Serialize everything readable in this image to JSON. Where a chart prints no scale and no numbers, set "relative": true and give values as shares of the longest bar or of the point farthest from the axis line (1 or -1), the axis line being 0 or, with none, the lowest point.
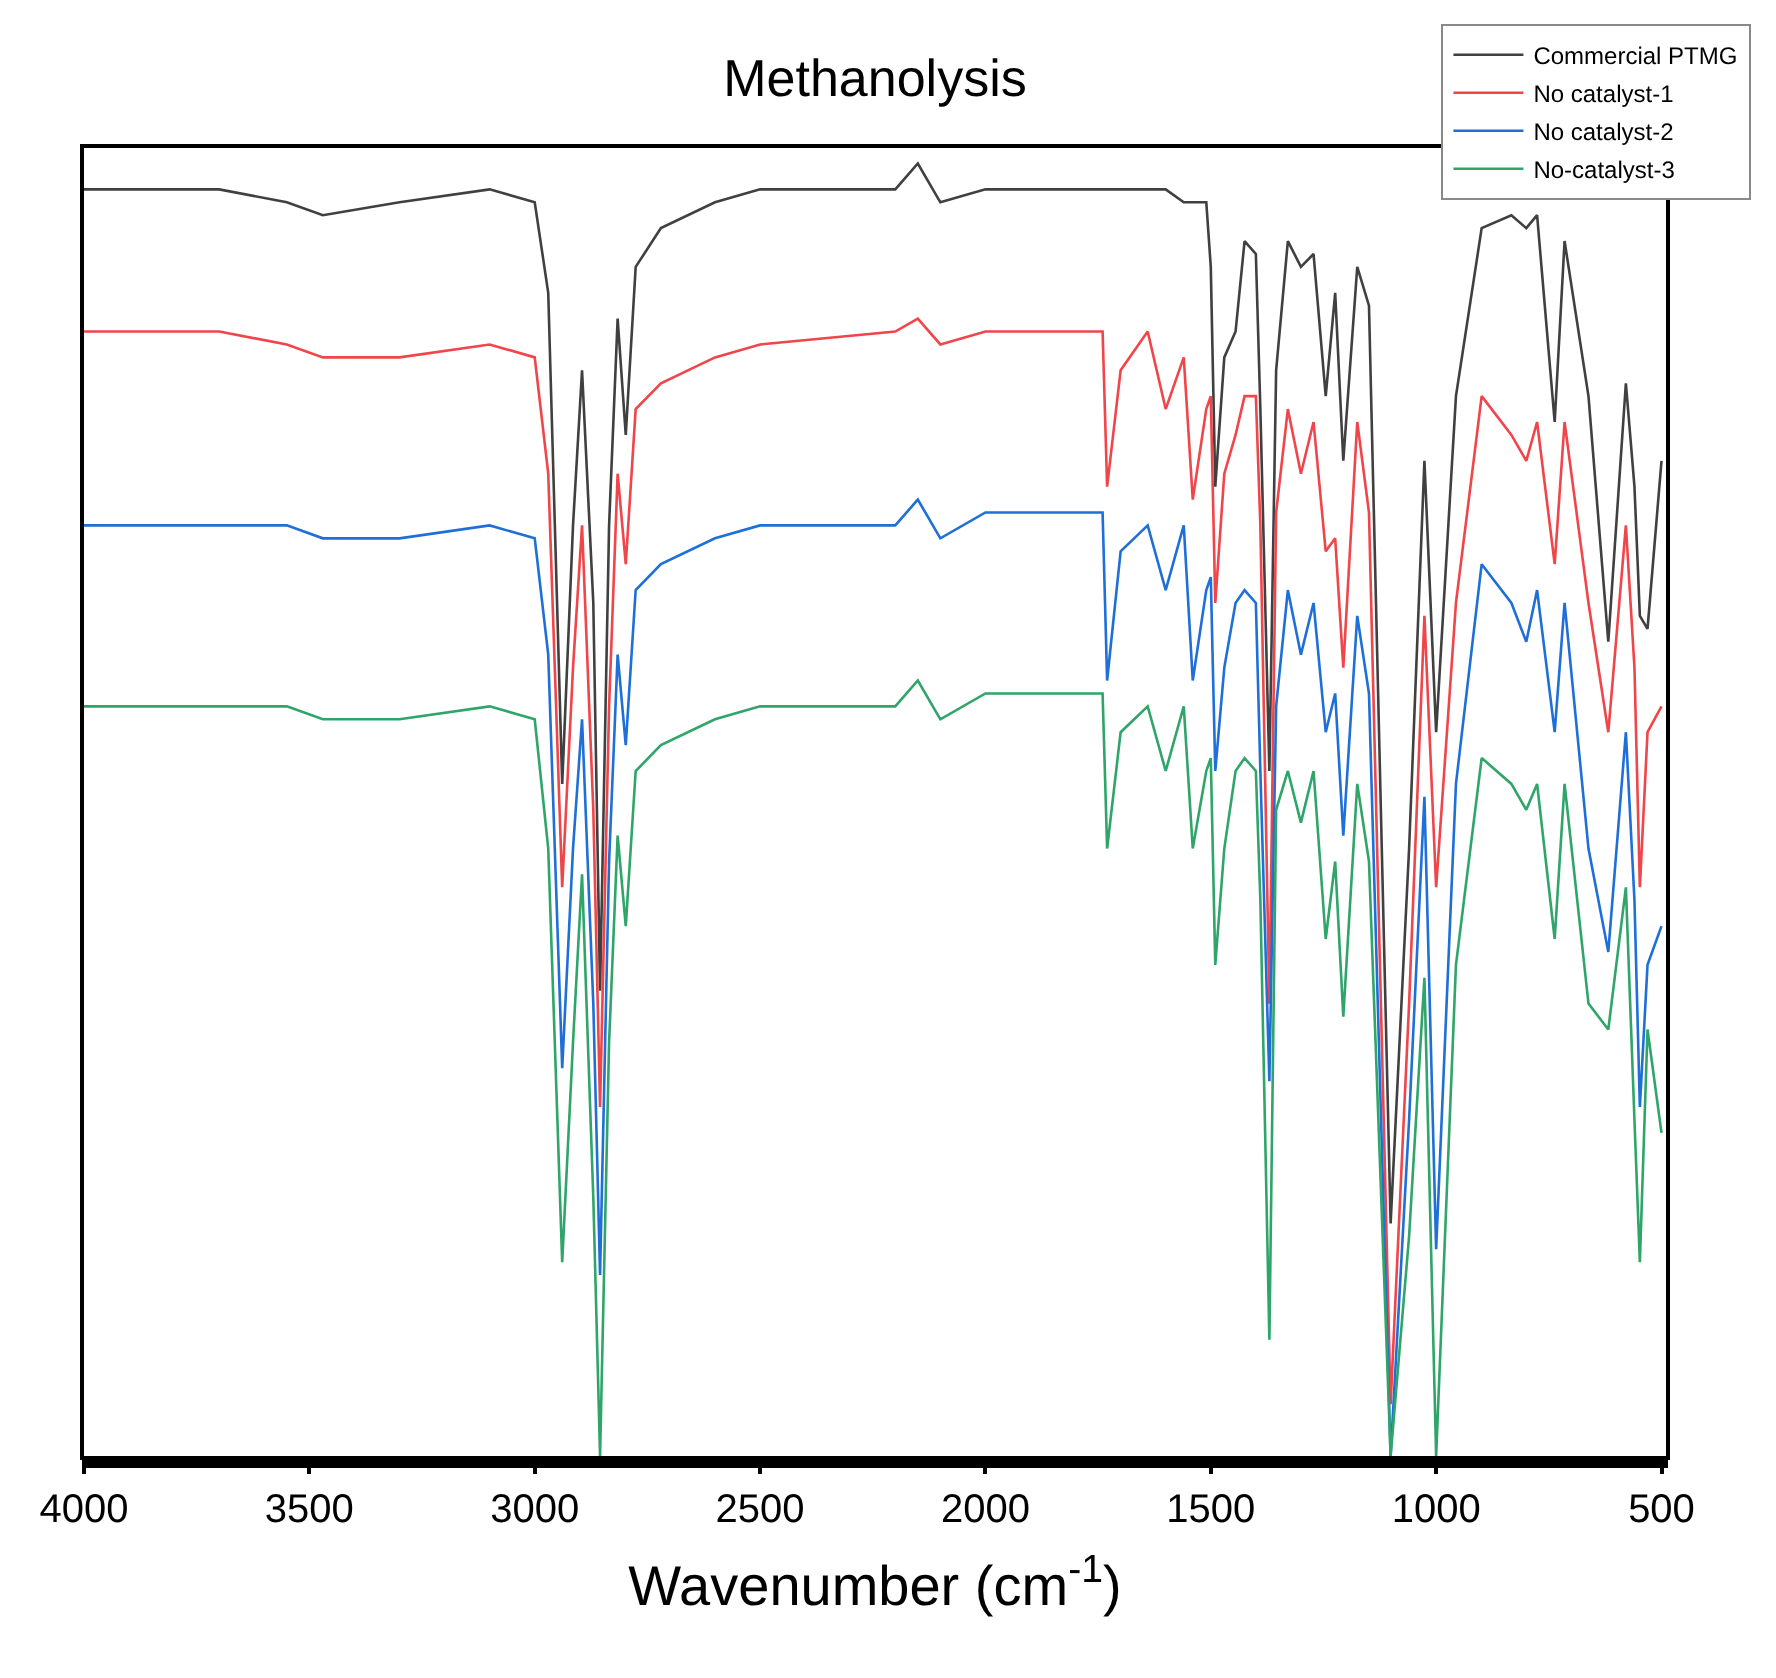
{
  "chart_data": {
    "type": "line",
    "title": "Methanolysis",
    "xlabel": "Wavenumber (cm$^{-1}$)",
    "relative": true,
    "legend": "top right",
    "tick_labels": "x",
    "marker": "none",
    "line_style": "solid",
    "xlim": [
      4000,
      490
    ],
    "xticks": [
      4000,
      3500,
      3000,
      2500,
      2000,
      1500,
      1000,
      500
    ],
    "x": [
      4000,
      3700,
      3550,
      3470,
      3300,
      3100,
      3000,
      2970,
      2939,
      2915,
      2895,
      2870,
      2855,
      2835,
      2816,
      2798,
      2776,
      2720,
      2600,
      2500,
      2200,
      2150,
      2100,
      2000,
      1800,
      1740,
      1730,
      1700,
      1640,
      1600,
      1560,
      1540,
      1510,
      1500,
      1490,
      1470,
      1445,
      1425,
      1400,
      1390,
      1370,
      1355,
      1329,
      1300,
      1272,
      1245,
      1224,
      1206,
      1175,
      1149,
      1101,
      1060,
      1026,
      1000,
      956,
      899,
      833,
      800,
      776,
      737,
      715,
      662,
      618,
      579,
      560,
      548,
      531,
      500
    ],
    "series": [
      {
        "name": "Commercial PTMG",
        "color": "#404040",
        "values": [
          0.98,
          0.98,
          0.97,
          0.96,
          0.97,
          0.98,
          0.97,
          0.9,
          0.52,
          0.72,
          0.84,
          0.66,
          0.36,
          0.72,
          0.88,
          0.79,
          0.92,
          0.95,
          0.97,
          0.98,
          0.98,
          1,
          0.97,
          0.98,
          0.98,
          0.98,
          0.98,
          0.98,
          0.98,
          0.98,
          0.97,
          0.97,
          0.97,
          0.92,
          0.75,
          0.85,
          0.87,
          0.94,
          0.93,
          0.81,
          0.53,
          0.84,
          0.94,
          0.92,
          0.93,
          0.82,
          0.9,
          0.77,
          0.92,
          0.89,
          0.18,
          0.47,
          0.77,
          0.56,
          0.82,
          0.95,
          0.96,
          0.95,
          0.96,
          0.8,
          0.94,
          0.82,
          0.63,
          0.83,
          0.75,
          0.65,
          0.64,
          0.77
        ]
      },
      {
        "name": "No catalyst-1",
        "color": "#f0454a",
        "values": [
          0.87,
          0.87,
          0.86,
          0.85,
          0.85,
          0.86,
          0.85,
          0.76,
          0.44,
          0.61,
          0.72,
          0.5,
          0.27,
          0.58,
          0.76,
          0.69,
          0.81,
          0.83,
          0.85,
          0.86,
          0.87,
          0.88,
          0.86,
          0.87,
          0.87,
          0.87,
          0.75,
          0.84,
          0.87,
          0.81,
          0.85,
          0.74,
          0.81,
          0.82,
          0.66,
          0.76,
          0.79,
          0.82,
          0.82,
          0.72,
          0.35,
          0.73,
          0.81,
          0.76,
          0.8,
          0.7,
          0.71,
          0.61,
          0.8,
          0.73,
          0.04,
          0.35,
          0.65,
          0.44,
          0.66,
          0.82,
          0.79,
          0.77,
          0.8,
          0.69,
          0.8,
          0.66,
          0.56,
          0.72,
          0.61,
          0.44,
          0.56,
          0.58
        ]
      },
      {
        "name": "No catalyst-2",
        "color": "#1f6fd8",
        "values": [
          0.72,
          0.72,
          0.72,
          0.71,
          0.71,
          0.72,
          0.71,
          0.62,
          0.3,
          0.47,
          0.57,
          0.35,
          0.14,
          0.46,
          0.62,
          0.55,
          0.67,
          0.69,
          0.71,
          0.72,
          0.72,
          0.74,
          0.71,
          0.73,
          0.73,
          0.73,
          0.6,
          0.7,
          0.72,
          0.67,
          0.72,
          0.6,
          0.67,
          0.68,
          0.53,
          0.61,
          0.66,
          0.67,
          0.66,
          0.53,
          0.29,
          0.58,
          0.67,
          0.62,
          0.66,
          0.56,
          0.59,
          0.48,
          0.65,
          0.59,
          0,
          0.26,
          0.51,
          0.16,
          0.52,
          0.69,
          0.66,
          0.63,
          0.67,
          0.56,
          0.66,
          0.47,
          0.39,
          0.56,
          0.43,
          0.27,
          0.38,
          0.41
        ]
      },
      {
        "name": "No-catalyst-3",
        "color": "#2fa56a",
        "values": [
          0.58,
          0.58,
          0.58,
          0.57,
          0.57,
          0.58,
          0.57,
          0.47,
          0.15,
          0.32,
          0.45,
          0.2,
          0,
          0.32,
          0.48,
          0.41,
          0.53,
          0.55,
          0.57,
          0.58,
          0.58,
          0.6,
          0.57,
          0.59,
          0.59,
          0.59,
          0.47,
          0.56,
          0.58,
          0.53,
          0.58,
          0.47,
          0.53,
          0.54,
          0.38,
          0.47,
          0.53,
          0.54,
          0.53,
          0.43,
          0.09,
          0.5,
          0.53,
          0.49,
          0.53,
          0.4,
          0.46,
          0.34,
          0.52,
          0.46,
          0,
          0.17,
          0.37,
          0,
          0.38,
          0.54,
          0.52,
          0.5,
          0.52,
          0.4,
          0.52,
          0.35,
          0.33,
          0.44,
          0.26,
          0.15,
          0.33,
          0.25
        ]
      }
    ]
  }
}
